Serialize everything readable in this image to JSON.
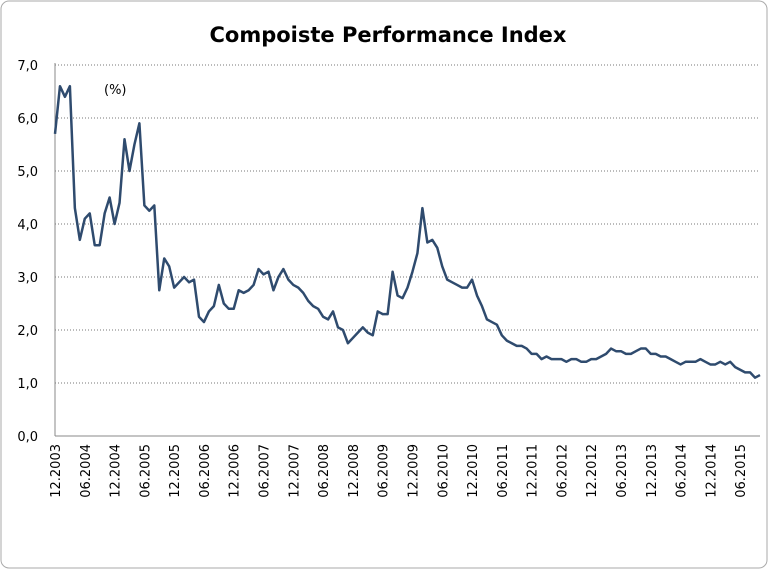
{
  "chart_data": {
    "type": "line",
    "title": "Compoiste Performance Index",
    "subtitle": "(%)",
    "categories": [
      "12.2003",
      null,
      null,
      null,
      null,
      null,
      "06.2004",
      null,
      null,
      null,
      null,
      null,
      "12.2004",
      null,
      null,
      null,
      null,
      null,
      "06.2005",
      null,
      null,
      null,
      null,
      null,
      "12.2005",
      null,
      null,
      null,
      null,
      null,
      "06.2006",
      null,
      null,
      null,
      null,
      null,
      "12.2006",
      null,
      null,
      null,
      null,
      null,
      "06.2007",
      null,
      null,
      null,
      null,
      null,
      "12.2007",
      null,
      null,
      null,
      null,
      null,
      "06.2008",
      null,
      null,
      null,
      null,
      null,
      "12.2008",
      null,
      null,
      null,
      null,
      null,
      "06.2009",
      null,
      null,
      null,
      null,
      null,
      "12.2009",
      null,
      null,
      null,
      null,
      null,
      "06.2010",
      null,
      null,
      null,
      null,
      null,
      "12.2010",
      null,
      null,
      null,
      null,
      null,
      "06.2011",
      null,
      null,
      null,
      null,
      null,
      "12.2011",
      null,
      null,
      null,
      null,
      null,
      "06.2012",
      null,
      null,
      null,
      null,
      null,
      "12.2012",
      null,
      null,
      null,
      null,
      null,
      "06.2013",
      null,
      null,
      null,
      null,
      null,
      "12.2013",
      null,
      null,
      null,
      null,
      null,
      "06.2014",
      null,
      null,
      null,
      null,
      null,
      "12.2014",
      null,
      null,
      null,
      null,
      null,
      "06.2015",
      null,
      null,
      null,
      null
    ],
    "values": [
      5.7,
      6.6,
      6.4,
      6.6,
      4.3,
      3.7,
      4.1,
      4.2,
      3.6,
      3.6,
      4.2,
      4.5,
      4.0,
      4.4,
      5.6,
      5.0,
      5.5,
      5.9,
      4.35,
      4.25,
      4.35,
      2.75,
      3.35,
      3.2,
      2.8,
      2.9,
      3.0,
      2.9,
      2.95,
      2.25,
      2.15,
      2.35,
      2.45,
      2.85,
      2.5,
      2.4,
      2.4,
      2.75,
      2.7,
      2.75,
      2.85,
      3.15,
      3.05,
      3.1,
      2.75,
      3.0,
      3.15,
      2.95,
      2.85,
      2.8,
      2.7,
      2.55,
      2.45,
      2.4,
      2.25,
      2.2,
      2.35,
      2.05,
      2.0,
      1.75,
      1.85,
      1.95,
      2.05,
      1.95,
      1.9,
      2.35,
      2.3,
      2.3,
      3.1,
      2.65,
      2.6,
      2.8,
      3.1,
      3.45,
      4.3,
      3.65,
      3.7,
      3.55,
      3.2,
      2.95,
      2.9,
      2.85,
      2.8,
      2.8,
      2.95,
      2.65,
      2.45,
      2.2,
      2.15,
      2.1,
      1.9,
      1.8,
      1.75,
      1.7,
      1.7,
      1.65,
      1.55,
      1.55,
      1.45,
      1.5,
      1.45,
      1.45,
      1.45,
      1.4,
      1.45,
      1.45,
      1.4,
      1.4,
      1.45,
      1.45,
      1.5,
      1.55,
      1.65,
      1.6,
      1.6,
      1.55,
      1.55,
      1.6,
      1.65,
      1.65,
      1.55,
      1.55,
      1.5,
      1.5,
      1.45,
      1.4,
      1.35,
      1.4,
      1.4,
      1.4,
      1.45,
      1.4,
      1.35,
      1.35,
      1.4,
      1.35,
      1.4,
      1.3,
      1.25,
      1.2,
      1.2,
      1.1,
      1.15
    ],
    "color": "#2f4b6e",
    "ylim": [
      0,
      7
    ],
    "yticks": [
      {
        "value": 0,
        "label": "0,0"
      },
      {
        "value": 1,
        "label": "1,0"
      },
      {
        "value": 2,
        "label": "2,0"
      },
      {
        "value": 3,
        "label": "3,0"
      },
      {
        "value": 4,
        "label": "4,0"
      },
      {
        "value": 5,
        "label": "5,0"
      },
      {
        "value": 6,
        "label": "6,0"
      },
      {
        "value": 7,
        "label": "7,0"
      }
    ],
    "grid": true
  }
}
